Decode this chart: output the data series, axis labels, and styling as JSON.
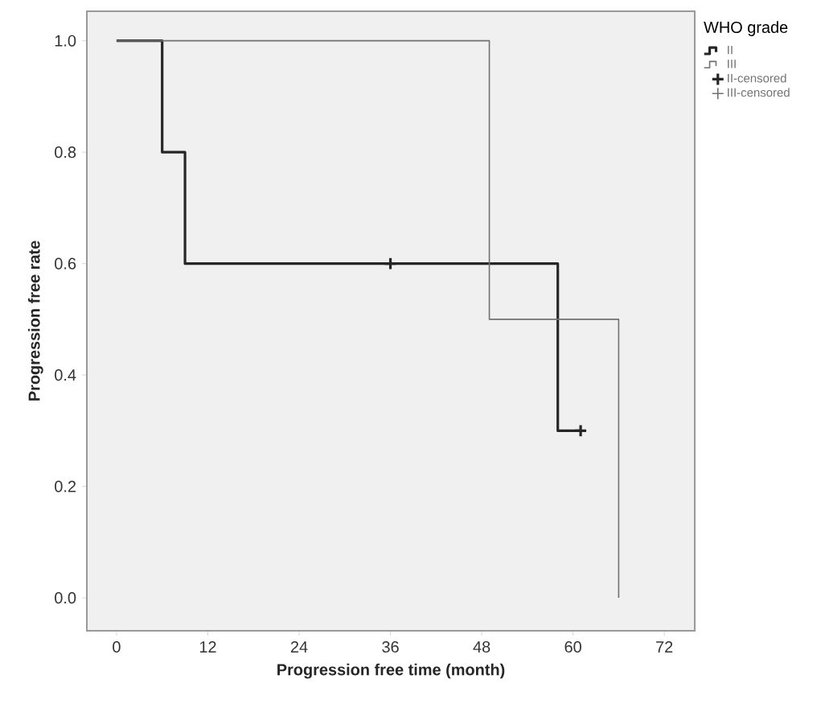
{
  "chart_data": {
    "type": "step",
    "xlabel": "Progression free time (month)",
    "ylabel": "Progression free rate",
    "legend_title": "WHO grade",
    "xlim": [
      -3.9,
      76
    ],
    "ylim": [
      -0.059,
      1.053
    ],
    "xticks": [
      0,
      12,
      24,
      36,
      48,
      60,
      72
    ],
    "yticks": [
      {
        "value": 0,
        "label": "0.0"
      },
      {
        "value": 0.2,
        "label": "0.2"
      },
      {
        "value": 0.4,
        "label": "0.4"
      },
      {
        "value": 0.6,
        "label": "0.6"
      },
      {
        "value": 0.8,
        "label": "0.8"
      },
      {
        "value": 1,
        "label": "1.0"
      }
    ],
    "grid": false,
    "legend": "top right",
    "series": [
      {
        "name": "II",
        "color": "#262626",
        "x": [
          0,
          6,
          9,
          58,
          61
        ],
        "values": [
          1,
          0.8,
          0.6,
          0.3,
          0.3
        ]
      },
      {
        "name": "III",
        "color": "#707070",
        "x": [
          0,
          49,
          66
        ],
        "values": [
          1,
          0.5,
          0
        ]
      },
      {
        "name": "II-censored",
        "type": "scatter",
        "marker": "cross",
        "color": "#262626",
        "x": [
          36,
          61
        ],
        "values": [
          0.6,
          0.3
        ]
      },
      {
        "name": "III-censored",
        "type": "scatter",
        "marker": "cross",
        "color": "#707070"
      }
    ]
  }
}
